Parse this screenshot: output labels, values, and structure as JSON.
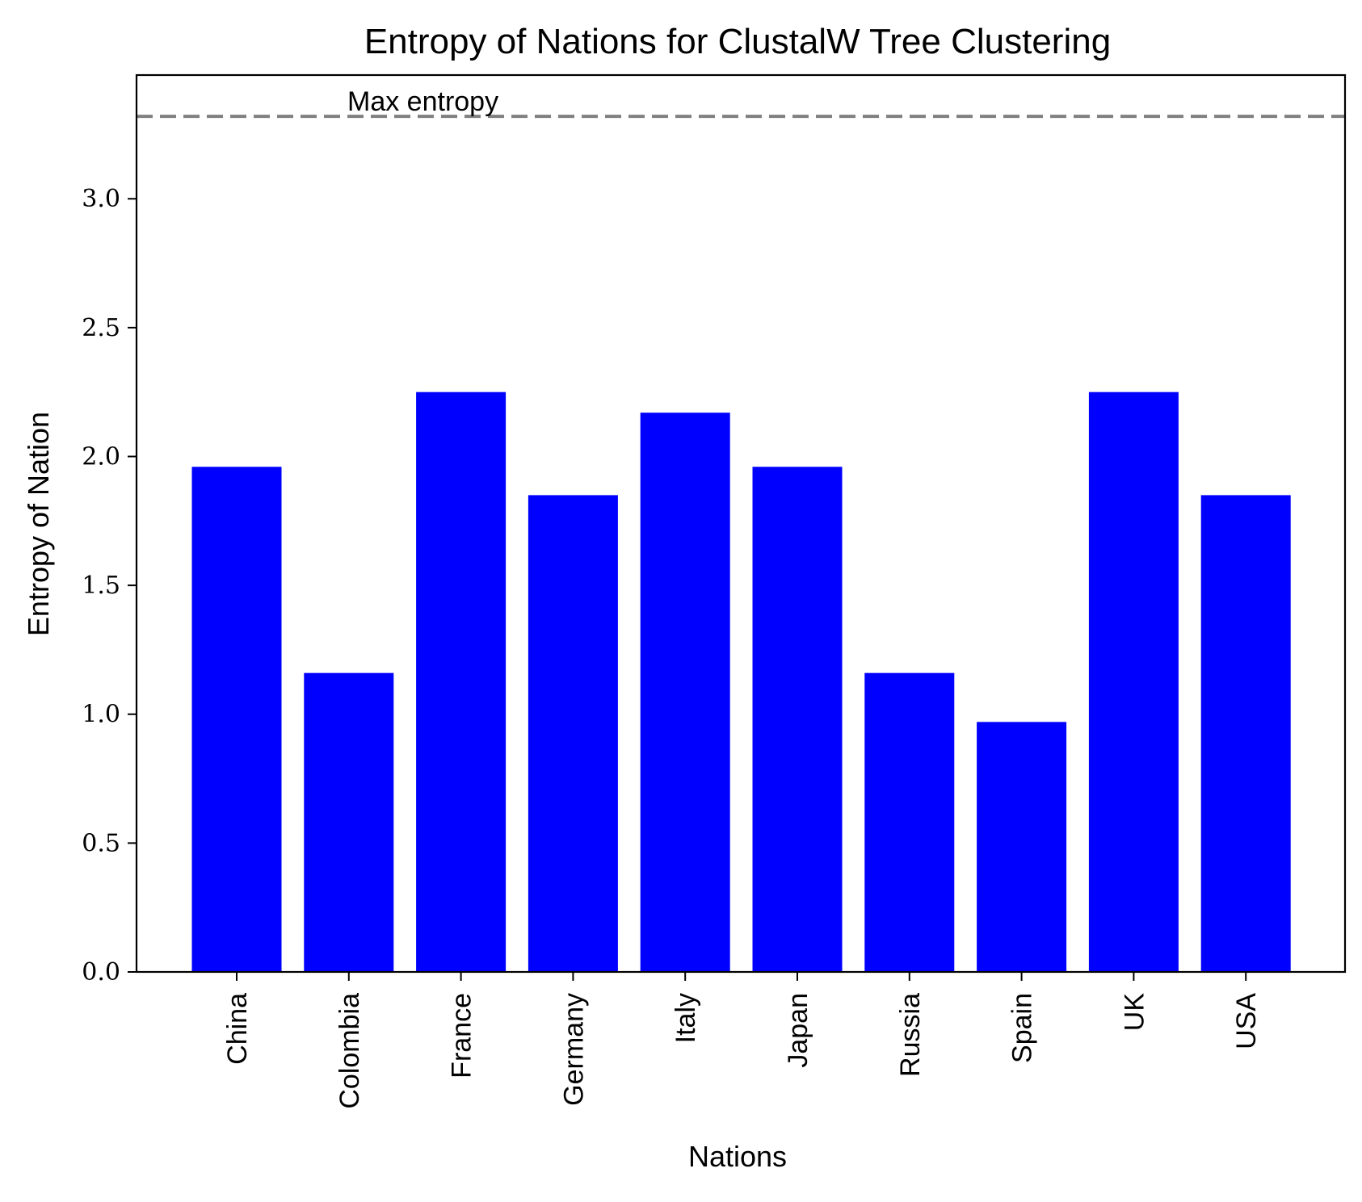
{
  "chart_data": {
    "type": "bar",
    "title": "Entropy of Nations for ClustalW Tree Clustering",
    "xlabel": "Nations",
    "ylabel": "Entropy of Nation",
    "categories": [
      "China",
      "Colombia",
      "France",
      "Germany",
      "Italy",
      "Japan",
      "Russia",
      "Spain",
      "UK",
      "USA"
    ],
    "values": [
      1.96,
      1.16,
      2.25,
      1.85,
      2.17,
      1.96,
      1.16,
      0.97,
      2.25,
      1.85
    ],
    "ylim": [
      0,
      3.48
    ],
    "yticks": [
      0.0,
      0.5,
      1.0,
      1.5,
      2.0,
      2.5,
      3.0
    ],
    "ytick_labels": [
      "0.0",
      "0.5",
      "1.0",
      "1.5",
      "2.0",
      "2.5",
      "3.0"
    ],
    "bar_color": "#0000ff",
    "reference_line": {
      "value": 3.32,
      "label": "Max entropy",
      "color": "#808080",
      "style": "dashed"
    },
    "grid": false
  }
}
